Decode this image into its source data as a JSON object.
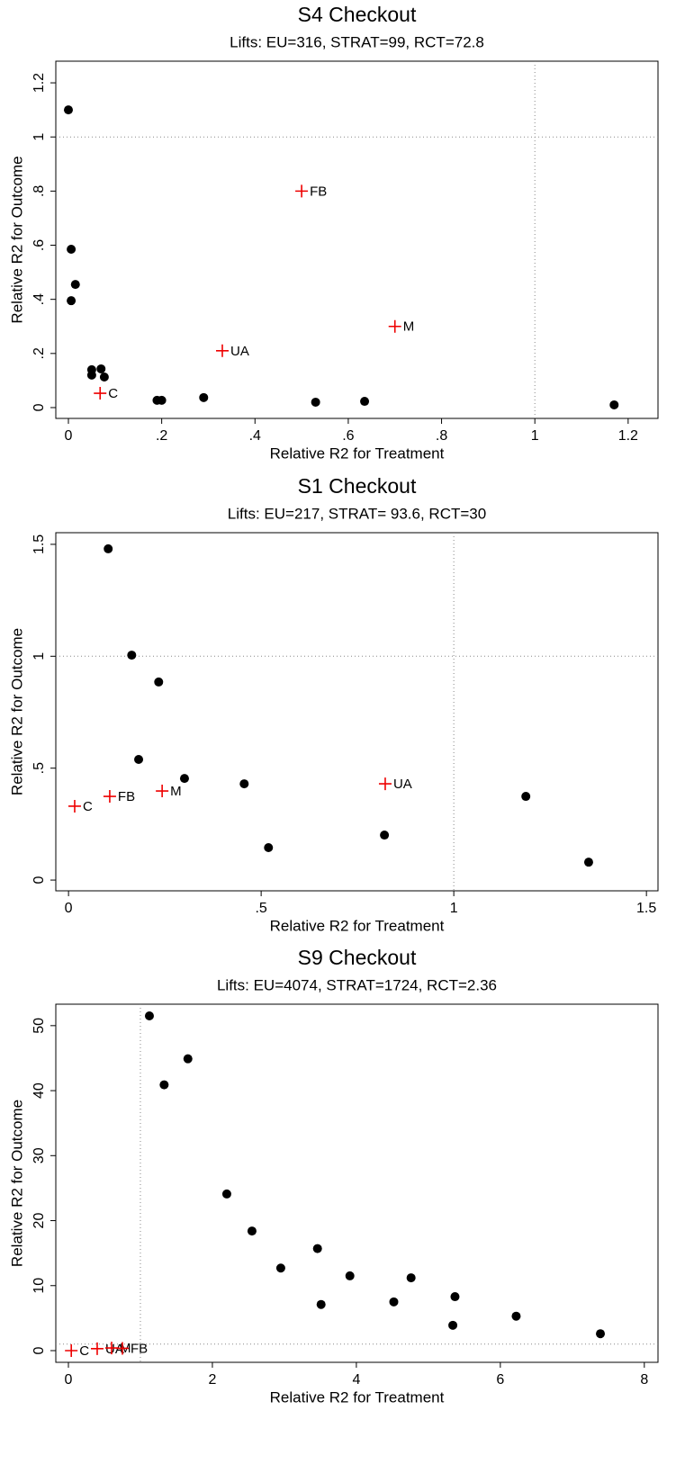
{
  "chart_data": [
    {
      "type": "scatter",
      "title": "S4 Checkout",
      "subtitle": "Lifts: EU=316, STRAT=99, RCT=72.8",
      "xlabel": "Relative R2 for Treatment",
      "ylabel": "Relative R2 for Outcome",
      "xlim": [
        -0.027,
        1.264
      ],
      "ylim": [
        -0.04,
        1.28
      ],
      "xticks": [
        0,
        {
          "value": 0.2,
          "label": ".2"
        },
        {
          "value": 0.4,
          "label": ".4"
        },
        {
          "value": 0.6,
          "label": ".6"
        },
        {
          "value": 0.8,
          "label": ".8"
        },
        1,
        1.2
      ],
      "yticks": [
        0,
        {
          "value": 0.2,
          "label": ".2"
        },
        {
          "value": 0.4,
          "label": ".4"
        },
        {
          "value": 0.6,
          "label": ".6"
        },
        {
          "value": 0.8,
          "label": ".8"
        },
        1,
        1.2
      ],
      "reflines": {
        "x": 1,
        "y": 1
      },
      "series": [
        {
          "marker": "dot",
          "color": "#000000",
          "x": [
            0,
            0.006,
            0.015,
            0.006,
            0.05,
            0.05,
            0.07,
            0.077,
            0.19,
            0.2,
            0.29,
            0.53,
            0.635,
            1.17
          ],
          "values": [
            1.1,
            0.585,
            0.455,
            0.395,
            0.14,
            0.12,
            0.143,
            0.113,
            0.027,
            0.027,
            0.037,
            0.02,
            0.023,
            0.01
          ]
        },
        {
          "marker": "plus",
          "color": "#ee0000",
          "labels": [
            "C",
            "UA",
            "FB",
            "M"
          ],
          "x": [
            0.068,
            0.33,
            0.5,
            0.7
          ],
          "values": [
            0.053,
            0.21,
            0.8,
            0.3
          ]
        }
      ]
    },
    {
      "type": "scatter",
      "title": "S1 Checkout",
      "subtitle": "Lifts: EU=217, STRAT= 93.6, RCT=30",
      "xlabel": "Relative R2 for Treatment",
      "ylabel": "Relative R2 for Outcome",
      "xlim": [
        -0.033,
        1.53
      ],
      "ylim": [
        -0.048,
        1.552
      ],
      "xticks": [
        0,
        {
          "value": 0.5,
          "label": ".5"
        },
        1,
        1.5
      ],
      "yticks": [
        0,
        {
          "value": 0.5,
          "label": ".5"
        },
        1,
        1.5
      ],
      "reflines": {
        "x": 1,
        "y": 1
      },
      "series": [
        {
          "marker": "dot",
          "color": "#000000",
          "x": [
            0.103,
            0.164,
            0.234,
            0.182,
            0.301,
            0.456,
            0.519,
            0.82,
            1.187,
            1.35
          ],
          "values": [
            1.48,
            1.005,
            0.885,
            0.539,
            0.454,
            0.43,
            0.145,
            0.201,
            0.374,
            0.08
          ]
        },
        {
          "marker": "plus",
          "color": "#ee0000",
          "labels": [
            "C",
            "FB",
            "M",
            "UA"
          ],
          "x": [
            0.016,
            0.107,
            0.243,
            0.822
          ],
          "values": [
            0.33,
            0.374,
            0.398,
            0.43
          ]
        }
      ]
    },
    {
      "type": "scatter",
      "title": "S9 Checkout",
      "subtitle": "Lifts: EU=4074, STRAT=1724, RCT=2.36",
      "xlabel": "Relative R2 for Treatment",
      "ylabel": "Relative R2 for Outcome",
      "xlim": [
        -0.175,
        8.19
      ],
      "ylim": [
        -1.8,
        53.3
      ],
      "xticks": [
        0,
        2,
        4,
        6,
        8
      ],
      "yticks": [
        0,
        10,
        20,
        30,
        40,
        50
      ],
      "reflines": {
        "x": 1,
        "y": 1
      },
      "series": [
        {
          "marker": "dot",
          "color": "#000000",
          "x": [
            1.125,
            1.33,
            1.66,
            2.2,
            2.55,
            2.95,
            3.46,
            3.51,
            3.91,
            4.52,
            4.76,
            5.37,
            5.34,
            6.22,
            7.39
          ],
          "values": [
            51.5,
            40.9,
            44.9,
            24.1,
            18.4,
            12.7,
            15.7,
            7.1,
            11.5,
            7.5,
            11.2,
            8.3,
            3.9,
            5.3,
            2.6
          ]
        },
        {
          "marker": "plus",
          "color": "#ee0000",
          "labels": [
            "C",
            "UA",
            "M",
            "FB"
          ],
          "x": [
            0.04,
            0.4,
            0.6,
            0.75
          ],
          "values": [
            0,
            0.3,
            0.4,
            0.35
          ]
        }
      ]
    }
  ]
}
